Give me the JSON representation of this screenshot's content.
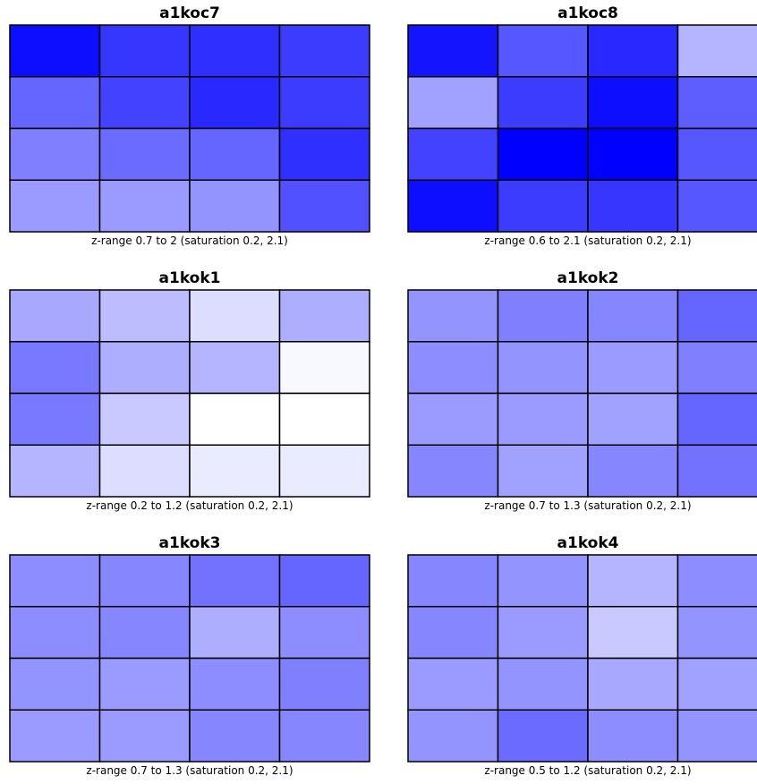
{
  "chart_data": [
    {
      "type": "heatmap",
      "title": "a1koc7",
      "caption": "z-range 0.7 to 2 (saturation 0.2, 2.1)",
      "zrange": [
        0.7,
        2
      ],
      "saturation": [
        0.2,
        2.1
      ],
      "rows": 4,
      "cols": 4,
      "values": [
        [
          2.0,
          1.7,
          1.75,
          1.65
        ],
        [
          1.35,
          1.6,
          1.8,
          1.65
        ],
        [
          1.15,
          1.3,
          1.35,
          1.75
        ],
        [
          0.95,
          0.95,
          1.0,
          1.5
        ]
      ]
    },
    {
      "type": "heatmap",
      "title": "a1koc8",
      "caption": "z-range 0.6 to 2.1 (saturation 0.2, 2.1)",
      "zrange": [
        0.6,
        2.1
      ],
      "saturation": [
        0.2,
        2.1
      ],
      "rows": 4,
      "cols": 4,
      "values": [
        [
          1.95,
          1.45,
          1.8,
          0.75
        ],
        [
          0.9,
          1.65,
          2.0,
          1.4
        ],
        [
          1.6,
          2.1,
          2.1,
          1.45
        ],
        [
          2.0,
          1.65,
          1.7,
          1.45
        ]
      ]
    },
    {
      "type": "heatmap",
      "title": "a1kok1",
      "caption": "z-range 0.2 to 1.2 (saturation 0.2, 2.1)",
      "zrange": [
        0.2,
        1.2
      ],
      "saturation": [
        0.2,
        2.1
      ],
      "rows": 4,
      "cols": 4,
      "values": [
        [
          0.85,
          0.7,
          0.45,
          0.8
        ],
        [
          1.2,
          0.8,
          0.75,
          0.25
        ],
        [
          1.2,
          0.6,
          0.2,
          0.2
        ],
        [
          0.75,
          0.45,
          0.35,
          0.35
        ]
      ]
    },
    {
      "type": "heatmap",
      "title": "a1kok2",
      "caption": "z-range 0.7 to 1.3 (saturation 0.2, 2.1)",
      "zrange": [
        0.7,
        1.3
      ],
      "saturation": [
        0.2,
        2.1
      ],
      "rows": 4,
      "cols": 4,
      "values": [
        [
          1.0,
          1.15,
          1.1,
          1.35
        ],
        [
          1.05,
          1.0,
          0.95,
          1.15
        ],
        [
          0.95,
          0.95,
          0.9,
          1.35
        ],
        [
          1.1,
          0.9,
          1.1,
          1.25
        ]
      ]
    },
    {
      "type": "heatmap",
      "title": "a1kok3",
      "caption": "z-range 0.7 to 1.3 (saturation 0.2, 2.1)",
      "zrange": [
        0.7,
        1.3
      ],
      "saturation": [
        0.2,
        2.1
      ],
      "rows": 4,
      "cols": 4,
      "values": [
        [
          1.05,
          1.1,
          1.25,
          1.35
        ],
        [
          1.05,
          1.1,
          0.8,
          1.05
        ],
        [
          1.0,
          0.95,
          1.05,
          1.15
        ],
        [
          0.95,
          0.95,
          1.1,
          1.1
        ]
      ]
    },
    {
      "type": "heatmap",
      "title": "a1kok4",
      "caption": "z-range 0.5 to 1.2 (saturation 0.2, 2.1)",
      "zrange": [
        0.5,
        1.2
      ],
      "saturation": [
        0.2,
        2.1
      ],
      "rows": 4,
      "cols": 4,
      "values": [
        [
          1.1,
          1.0,
          0.75,
          1.05
        ],
        [
          1.1,
          0.95,
          0.6,
          1.0
        ],
        [
          0.95,
          1.0,
          0.85,
          0.9
        ],
        [
          1.0,
          1.3,
          1.05,
          1.0
        ]
      ]
    }
  ]
}
